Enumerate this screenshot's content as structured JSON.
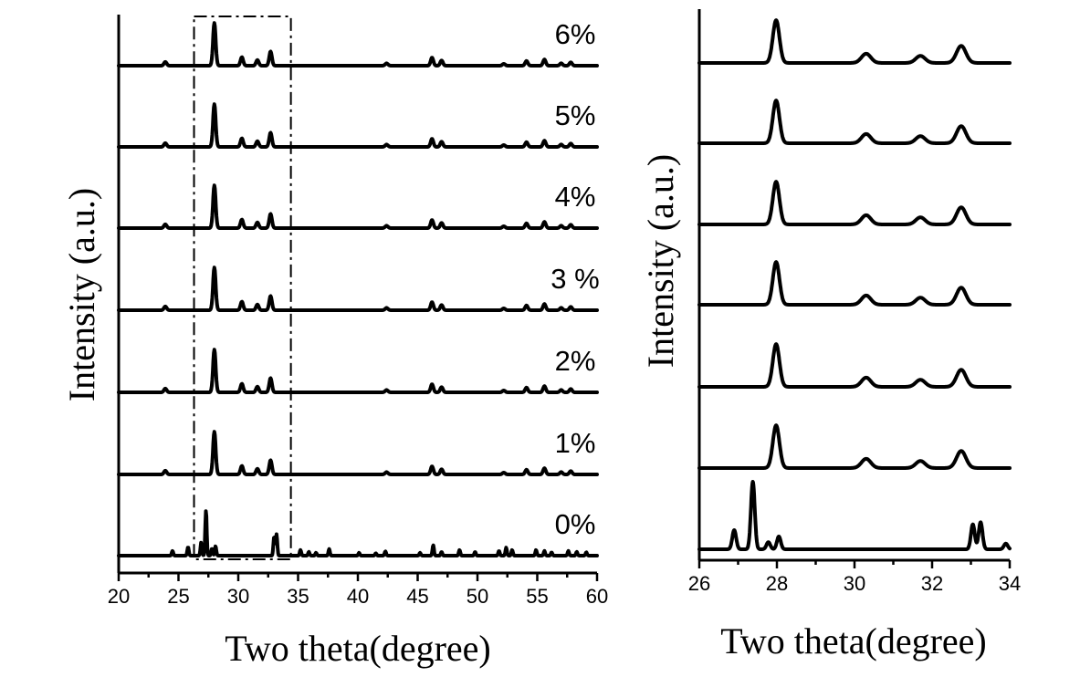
{
  "chart_data": [
    {
      "type": "line",
      "xlabel": "Two theta(degree)",
      "ylabel": "Intensity (a.u.)",
      "xlim": [
        20,
        60
      ],
      "x_ticks": [
        20,
        25,
        30,
        35,
        40,
        45,
        50,
        55,
        60
      ],
      "y_ticks": "none",
      "stacked_offsets": true,
      "grid": false,
      "legend": "labels above each trace (right side)",
      "zoom_box_x": [
        26.3,
        34.4
      ],
      "series": [
        {
          "name": "6%",
          "peaks": [
            [
              23.9,
              0.08
            ],
            [
              28.0,
              0.9
            ],
            [
              30.3,
              0.18
            ],
            [
              31.6,
              0.12
            ],
            [
              32.7,
              0.3
            ],
            [
              42.4,
              0.05
            ],
            [
              46.2,
              0.17
            ],
            [
              47.0,
              0.11
            ],
            [
              52.2,
              0.04
            ],
            [
              54.1,
              0.1
            ],
            [
              55.6,
              0.13
            ],
            [
              57.0,
              0.05
            ],
            [
              57.8,
              0.07
            ]
          ]
        },
        {
          "name": "5%",
          "peaks": [
            [
              23.9,
              0.08
            ],
            [
              28.0,
              0.9
            ],
            [
              30.3,
              0.18
            ],
            [
              31.6,
              0.12
            ],
            [
              32.7,
              0.3
            ],
            [
              42.4,
              0.05
            ],
            [
              46.2,
              0.17
            ],
            [
              47.0,
              0.11
            ],
            [
              52.2,
              0.04
            ],
            [
              54.1,
              0.1
            ],
            [
              55.6,
              0.13
            ],
            [
              57.0,
              0.05
            ],
            [
              57.8,
              0.07
            ]
          ]
        },
        {
          "name": "4%",
          "peaks": [
            [
              23.9,
              0.08
            ],
            [
              28.0,
              0.9
            ],
            [
              30.3,
              0.18
            ],
            [
              31.6,
              0.12
            ],
            [
              32.7,
              0.3
            ],
            [
              42.4,
              0.05
            ],
            [
              46.2,
              0.17
            ],
            [
              47.0,
              0.11
            ],
            [
              52.2,
              0.04
            ],
            [
              54.1,
              0.1
            ],
            [
              55.6,
              0.13
            ],
            [
              57.0,
              0.05
            ],
            [
              57.8,
              0.07
            ]
          ]
        },
        {
          "name": "3 %",
          "peaks": [
            [
              23.9,
              0.08
            ],
            [
              28.0,
              0.9
            ],
            [
              30.3,
              0.18
            ],
            [
              31.6,
              0.12
            ],
            [
              32.7,
              0.3
            ],
            [
              42.4,
              0.05
            ],
            [
              46.2,
              0.17
            ],
            [
              47.0,
              0.11
            ],
            [
              52.2,
              0.04
            ],
            [
              54.1,
              0.1
            ],
            [
              55.6,
              0.13
            ],
            [
              57.0,
              0.05
            ],
            [
              57.8,
              0.07
            ]
          ]
        },
        {
          "name": "2%",
          "peaks": [
            [
              23.9,
              0.08
            ],
            [
              28.0,
              0.9
            ],
            [
              30.3,
              0.18
            ],
            [
              31.6,
              0.12
            ],
            [
              32.7,
              0.3
            ],
            [
              42.4,
              0.05
            ],
            [
              46.2,
              0.17
            ],
            [
              47.0,
              0.11
            ],
            [
              52.2,
              0.04
            ],
            [
              54.1,
              0.1
            ],
            [
              55.6,
              0.13
            ],
            [
              57.0,
              0.05
            ],
            [
              57.8,
              0.07
            ]
          ]
        },
        {
          "name": "1%",
          "peaks": [
            [
              23.9,
              0.08
            ],
            [
              28.0,
              0.9
            ],
            [
              30.3,
              0.18
            ],
            [
              31.6,
              0.12
            ],
            [
              32.7,
              0.3
            ],
            [
              42.4,
              0.05
            ],
            [
              46.2,
              0.17
            ],
            [
              47.0,
              0.11
            ],
            [
              52.2,
              0.04
            ],
            [
              54.1,
              0.1
            ],
            [
              55.6,
              0.13
            ],
            [
              57.0,
              0.05
            ],
            [
              57.8,
              0.07
            ]
          ]
        },
        {
          "name": "0%",
          "peaks": [
            [
              24.5,
              0.1
            ],
            [
              25.8,
              0.18
            ],
            [
              26.9,
              0.28
            ],
            [
              27.3,
              0.95
            ],
            [
              27.8,
              0.15
            ],
            [
              28.1,
              0.2
            ],
            [
              33.0,
              0.4
            ],
            [
              33.2,
              0.45
            ],
            [
              35.2,
              0.12
            ],
            [
              35.9,
              0.08
            ],
            [
              36.5,
              0.06
            ],
            [
              37.6,
              0.14
            ],
            [
              40.1,
              0.06
            ],
            [
              41.5,
              0.05
            ],
            [
              42.3,
              0.09
            ],
            [
              45.2,
              0.06
            ],
            [
              46.3,
              0.22
            ],
            [
              47.0,
              0.08
            ],
            [
              48.5,
              0.12
            ],
            [
              49.8,
              0.08
            ],
            [
              51.8,
              0.1
            ],
            [
              52.4,
              0.17
            ],
            [
              52.9,
              0.12
            ],
            [
              54.9,
              0.12
            ],
            [
              55.6,
              0.1
            ],
            [
              56.2,
              0.07
            ],
            [
              57.6,
              0.1
            ],
            [
              58.3,
              0.08
            ],
            [
              59.1,
              0.07
            ]
          ]
        }
      ]
    },
    {
      "type": "line",
      "xlabel": "Two theta(degree)",
      "ylabel": "Intensity (a.u.)",
      "xlim": [
        26,
        34
      ],
      "x_ticks": [
        26,
        28,
        30,
        32,
        34
      ],
      "y_ticks": "none",
      "stacked_offsets": true,
      "grid": false,
      "series": [
        {
          "peaks": [
            [
              27.98,
              0.6
            ],
            [
              30.3,
              0.13
            ],
            [
              31.7,
              0.1
            ],
            [
              32.75,
              0.24
            ]
          ]
        },
        {
          "peaks": [
            [
              27.98,
              0.6
            ],
            [
              30.3,
              0.13
            ],
            [
              31.7,
              0.1
            ],
            [
              32.75,
              0.24
            ]
          ]
        },
        {
          "peaks": [
            [
              27.98,
              0.6
            ],
            [
              30.3,
              0.13
            ],
            [
              31.7,
              0.1
            ],
            [
              32.75,
              0.24
            ]
          ]
        },
        {
          "peaks": [
            [
              27.98,
              0.6
            ],
            [
              30.3,
              0.13
            ],
            [
              31.7,
              0.1
            ],
            [
              32.75,
              0.24
            ]
          ]
        },
        {
          "peaks": [
            [
              27.98,
              0.6
            ],
            [
              30.3,
              0.13
            ],
            [
              31.7,
              0.1
            ],
            [
              32.75,
              0.24
            ]
          ]
        },
        {
          "peaks": [
            [
              27.98,
              0.6
            ],
            [
              30.3,
              0.13
            ],
            [
              31.7,
              0.1
            ],
            [
              32.75,
              0.24
            ]
          ]
        },
        {
          "peaks": [
            [
              26.9,
              0.27
            ],
            [
              27.38,
              0.95
            ],
            [
              27.78,
              0.1
            ],
            [
              28.05,
              0.18
            ],
            [
              33.05,
              0.35
            ],
            [
              33.25,
              0.38
            ],
            [
              33.9,
              0.08
            ]
          ]
        }
      ]
    }
  ]
}
